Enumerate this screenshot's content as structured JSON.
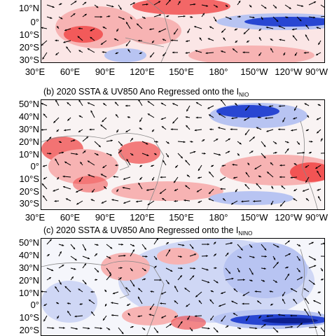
{
  "panels": [
    {
      "id": "a",
      "title": "",
      "title_sub": "",
      "y_labels": [
        "10°N",
        "0°",
        "10°S",
        "20°S",
        "30°S"
      ],
      "x_labels": [
        "30°E",
        "60°E",
        "90°E",
        "120°E",
        "150°E",
        "180°",
        "150°W",
        "120°W",
        "90°W"
      ]
    },
    {
      "id": "b",
      "title": "(b) 2020 SSTA & UV850 Ano Regressed onto the I",
      "title_sub": "NIO",
      "y_labels": [
        "50°N",
        "40°N",
        "30°N",
        "20°N",
        "10°N",
        "0°",
        "10°S",
        "20°S",
        "30°S"
      ],
      "x_labels": [
        "30°E",
        "60°E",
        "90°E",
        "120°E",
        "150°E",
        "180°",
        "150°W",
        "120°W",
        "90°W"
      ]
    },
    {
      "id": "c",
      "title": "(c) 2020 SSTA & UV850 Ano Regressed onto the I",
      "title_sub": "NINO",
      "y_labels": [
        "50°N",
        "40°N",
        "30°N",
        "20°N",
        "10°N",
        "0°",
        "10°S",
        "20°S"
      ],
      "x_labels": []
    }
  ],
  "colors": {
    "warm": "#f03c3c",
    "warm_light": "#f7b3b3",
    "cool": "#2846d2",
    "cool_light": "#b8c4f2",
    "land_outline": "#888888",
    "vector": "#000000"
  }
}
